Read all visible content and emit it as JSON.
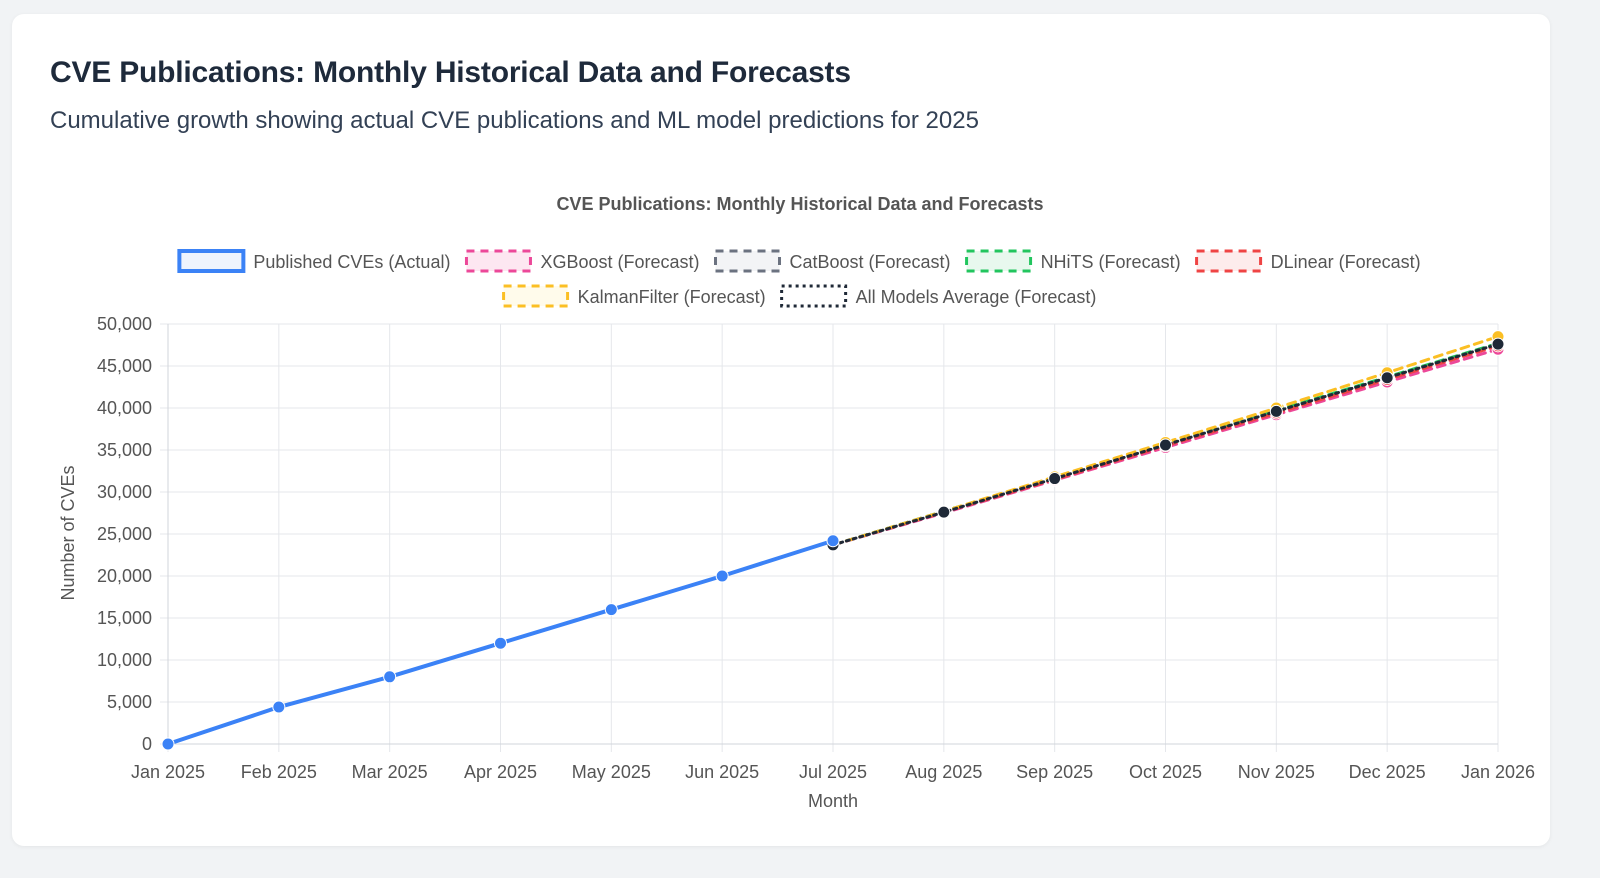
{
  "header": {
    "title": "CVE Publications: Monthly Historical Data and Forecasts",
    "subtitle": "Cumulative growth showing actual CVE publications and ML model predictions for 2025"
  },
  "chart_data": {
    "type": "line",
    "title": "CVE Publications: Monthly Historical Data and Forecasts",
    "xlabel": "Month",
    "ylabel": "Number of CVEs",
    "ylim": [
      0,
      50000
    ],
    "yticks": [
      "0",
      "5,000",
      "10,000",
      "15,000",
      "20,000",
      "25,000",
      "30,000",
      "35,000",
      "40,000",
      "45,000",
      "50,000"
    ],
    "categories": [
      "Jan 2025",
      "Feb 2025",
      "Mar 2025",
      "Apr 2025",
      "May 2025",
      "Jun 2025",
      "Jul 2025",
      "Aug 2025",
      "Sep 2025",
      "Oct 2025",
      "Nov 2025",
      "Dec 2025",
      "Jan 2026"
    ],
    "grid": true,
    "legend_position": "top",
    "series": [
      {
        "name": "Published CVEs (Actual)",
        "color": "#3b82f6",
        "fill": "#eef3fd",
        "dash": "solid",
        "width": 4,
        "values": [
          0,
          4400,
          8000,
          12000,
          16000,
          20000,
          24200,
          null,
          null,
          null,
          null,
          null,
          null
        ]
      },
      {
        "name": "XGBoost (Forecast)",
        "color": "#ec4899",
        "fill": "#fde7f1",
        "dash": "dashed",
        "width": 3,
        "values": [
          null,
          null,
          null,
          null,
          null,
          null,
          23700,
          27500,
          31400,
          35300,
          39200,
          43100,
          47000
        ]
      },
      {
        "name": "CatBoost (Forecast)",
        "color": "#6b7280",
        "fill": "#f3f4f6",
        "dash": "dashed",
        "width": 3,
        "values": [
          null,
          null,
          null,
          null,
          null,
          null,
          23700,
          27700,
          31700,
          35700,
          39600,
          43600,
          47600
        ]
      },
      {
        "name": "NHiTS (Forecast)",
        "color": "#22c55e",
        "fill": "#e8f8ee",
        "dash": "dashed",
        "width": 3,
        "values": [
          null,
          null,
          null,
          null,
          null,
          null,
          23700,
          27700,
          31700,
          35700,
          39700,
          43700,
          47700
        ]
      },
      {
        "name": "DLinear (Forecast)",
        "color": "#ef4444",
        "fill": "#fdecec",
        "dash": "dashed",
        "width": 3,
        "values": [
          null,
          null,
          null,
          null,
          null,
          null,
          23700,
          27600,
          31500,
          35500,
          39400,
          43400,
          47400
        ]
      },
      {
        "name": "KalmanFilter (Forecast)",
        "color": "#fbbf24",
        "fill": "#fffbeb",
        "dash": "dashed",
        "width": 3,
        "values": [
          null,
          null,
          null,
          null,
          null,
          null,
          23700,
          27700,
          31800,
          35900,
          40000,
          44200,
          48500
        ]
      },
      {
        "name": "All Models Average (Forecast)",
        "color": "#1f2937",
        "fill": "#ffffff",
        "dash": "dotted",
        "width": 3,
        "values": [
          null,
          null,
          null,
          null,
          null,
          null,
          23700,
          27600,
          31600,
          35600,
          39600,
          43600,
          47600
        ]
      }
    ]
  }
}
